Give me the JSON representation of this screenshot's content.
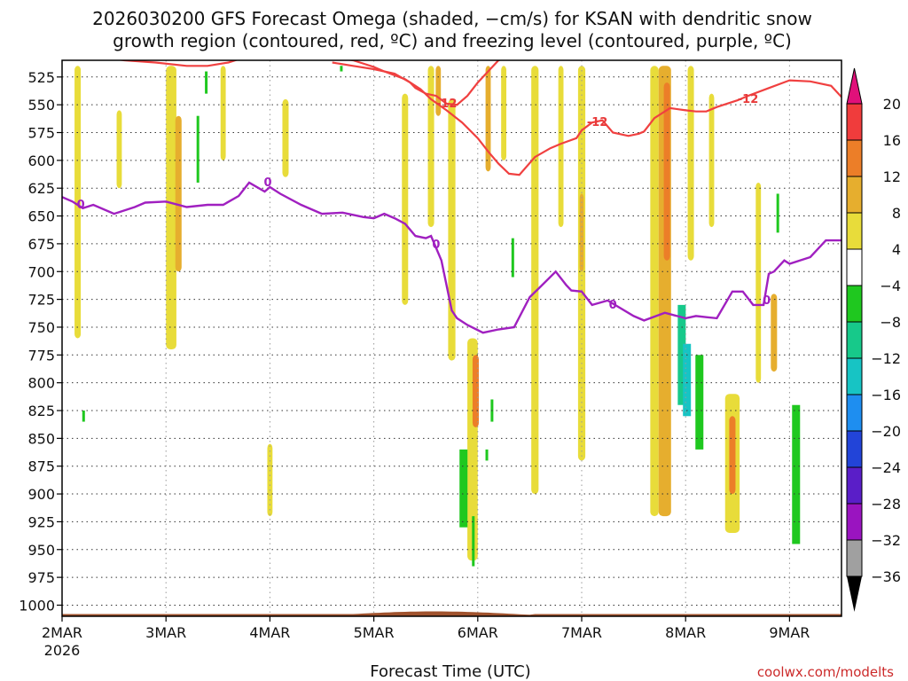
{
  "chart_data": {
    "type": "heatmap",
    "title_line1": "2026030200 GFS Forecast Omega (shaded, −cm/s) for KSAN with dendritic snow",
    "title_line2": "growth region (contoured, red, ºC) and freezing level (contoured, purple, ºC)",
    "xlabel": "Forecast Time (UTC)",
    "credit": "coolwx.com/modelts",
    "x_ticks": [
      "2MAR",
      "3MAR",
      "4MAR",
      "5MAR",
      "6MAR",
      "7MAR",
      "8MAR",
      "9MAR"
    ],
    "x_year": "2026",
    "x_range_days": [
      0,
      7.5
    ],
    "y_ticks": [
      525,
      550,
      575,
      600,
      625,
      650,
      675,
      700,
      725,
      750,
      775,
      800,
      825,
      850,
      875,
      900,
      925,
      950,
      975,
      1000
    ],
    "y_range_hpa": [
      510,
      1010
    ],
    "colorbar": {
      "labels": [
        "20",
        "16",
        "12",
        "8",
        "4",
        "−4",
        "−8",
        "−12",
        "−16",
        "−20",
        "−24",
        "−28",
        "−32",
        "−36"
      ],
      "bands": [
        {
          "from": 16,
          "to": 20,
          "color": "#f03c3c"
        },
        {
          "from": 12,
          "to": 16,
          "color": "#ec7e28"
        },
        {
          "from": 8,
          "to": 12,
          "color": "#e6ae2e"
        },
        {
          "from": 4,
          "to": 8,
          "color": "#e8dc3a"
        },
        {
          "from": -4,
          "to": 4,
          "color": "#ffffff"
        },
        {
          "from": -8,
          "to": -4,
          "color": "#1fc81f"
        },
        {
          "from": -12,
          "to": -8,
          "color": "#17c98a"
        },
        {
          "from": -16,
          "to": -12,
          "color": "#17c4c4"
        },
        {
          "from": -20,
          "to": -16,
          "color": "#1e8ef0"
        },
        {
          "from": -24,
          "to": -20,
          "color": "#2244d8"
        },
        {
          "from": -28,
          "to": -24,
          "color": "#5a1ec8"
        },
        {
          "from": -32,
          "to": -28,
          "color": "#9a14c0"
        },
        {
          "from": -36,
          "to": -32,
          "color": "#a0a0a0"
        }
      ],
      "top_arrow_color": "#e0107a",
      "bottom_arrow_color": "#000000"
    },
    "shading": [
      {
        "day": 0.15,
        "w": 0.06,
        "p0": 515,
        "p1": 760,
        "v": 5
      },
      {
        "day": 0.55,
        "w": 0.05,
        "p0": 555,
        "p1": 625,
        "v": 5
      },
      {
        "day": 1.05,
        "w": 0.1,
        "p0": 515,
        "p1": 770,
        "v": 5
      },
      {
        "day": 1.12,
        "w": 0.06,
        "p0": 560,
        "p1": 700,
        "v": 9
      },
      {
        "day": 1.55,
        "w": 0.05,
        "p0": 515,
        "p1": 600,
        "v": 5
      },
      {
        "day": 2.15,
        "w": 0.06,
        "p0": 545,
        "p1": 615,
        "v": 5
      },
      {
        "day": 2.0,
        "w": 0.05,
        "p0": 855,
        "p1": 920,
        "v": 5
      },
      {
        "day": 3.3,
        "w": 0.06,
        "p0": 540,
        "p1": 730,
        "v": 5
      },
      {
        "day": 3.55,
        "w": 0.06,
        "p0": 515,
        "p1": 660,
        "v": 5
      },
      {
        "day": 3.62,
        "w": 0.05,
        "p0": 515,
        "p1": 560,
        "v": 9
      },
      {
        "day": 3.75,
        "w": 0.07,
        "p0": 545,
        "p1": 780,
        "v": 5
      },
      {
        "day": 3.95,
        "w": 0.1,
        "p0": 760,
        "p1": 960,
        "v": 5
      },
      {
        "day": 3.98,
        "w": 0.06,
        "p0": 775,
        "p1": 840,
        "v": 13
      },
      {
        "day": 4.1,
        "w": 0.05,
        "p0": 515,
        "p1": 610,
        "v": 9
      },
      {
        "day": 4.25,
        "w": 0.05,
        "p0": 515,
        "p1": 600,
        "v": 5
      },
      {
        "day": 4.55,
        "w": 0.07,
        "p0": 515,
        "p1": 900,
        "v": 5
      },
      {
        "day": 4.8,
        "w": 0.05,
        "p0": 515,
        "p1": 660,
        "v": 5
      },
      {
        "day": 5.0,
        "w": 0.07,
        "p0": 515,
        "p1": 870,
        "v": 5
      },
      {
        "day": 5.0,
        "w": 0.04,
        "p0": 630,
        "p1": 700,
        "v": 9
      },
      {
        "day": 5.7,
        "w": 0.05,
        "p0": 560,
        "p1": 700,
        "v": 5
      },
      {
        "day": 5.7,
        "w": 0.08,
        "p0": 515,
        "p1": 920,
        "v": 5
      },
      {
        "day": 5.8,
        "w": 0.12,
        "p0": 515,
        "p1": 920,
        "v": 9
      },
      {
        "day": 5.82,
        "w": 0.06,
        "p0": 530,
        "p1": 690,
        "v": 13
      },
      {
        "day": 6.05,
        "w": 0.06,
        "p0": 515,
        "p1": 690,
        "v": 5
      },
      {
        "day": 6.25,
        "w": 0.05,
        "p0": 540,
        "p1": 660,
        "v": 5
      },
      {
        "day": 6.45,
        "w": 0.14,
        "p0": 810,
        "p1": 935,
        "v": 5
      },
      {
        "day": 6.45,
        "w": 0.06,
        "p0": 830,
        "p1": 900,
        "v": 13
      },
      {
        "day": 6.7,
        "w": 0.05,
        "p0": 620,
        "p1": 800,
        "v": 5
      },
      {
        "day": 6.85,
        "w": 0.06,
        "p0": 720,
        "p1": 790,
        "v": 9
      }
    ],
    "green_patches": [
      {
        "day": 0.22,
        "p0": 825,
        "p1": 835,
        "v": -6
      },
      {
        "day": 1.4,
        "p0": 520,
        "p1": 540,
        "v": -6
      },
      {
        "day": 1.32,
        "p0": 560,
        "p1": 620,
        "v": -6
      },
      {
        "day": 2.7,
        "p0": 515,
        "p1": 520,
        "v": -6
      },
      {
        "day": 3.85,
        "p0": 860,
        "p1": 930,
        "v": -6
      },
      {
        "day": 3.97,
        "p0": 920,
        "p1": 965,
        "v": -6
      },
      {
        "day": 4.15,
        "p0": 815,
        "p1": 835,
        "v": -6
      },
      {
        "day": 4.1,
        "p0": 860,
        "p1": 870,
        "v": -6
      },
      {
        "day": 4.35,
        "p0": 670,
        "p1": 705,
        "v": -6
      },
      {
        "day": 5.95,
        "p0": 730,
        "p1": 820,
        "v": -10
      },
      {
        "day": 6.0,
        "p0": 765,
        "p1": 830,
        "v": -14
      },
      {
        "day": 6.12,
        "p0": 775,
        "p1": 860,
        "v": -6
      },
      {
        "day": 6.9,
        "p0": 630,
        "p1": 665,
        "v": -6
      },
      {
        "day": 7.05,
        "p0": 820,
        "p1": 945,
        "v": -6
      }
    ],
    "dendritic_red": {
      "level_label": "-12",
      "x": [
        0.2,
        0.6,
        0.9,
        1.2,
        1.4,
        1.6,
        1.8,
        2.0,
        2.4,
        2.8,
        3.0,
        3.1,
        3.3,
        3.45,
        3.55,
        3.7,
        3.85,
        4.0,
        4.1,
        4.2,
        4.3,
        4.4,
        4.55,
        4.7,
        4.8,
        4.95,
        5.0,
        5.1,
        5.2,
        5.3,
        5.45,
        5.55,
        5.6,
        5.7,
        5.85,
        6.0,
        6.1,
        6.2,
        6.3,
        6.5,
        6.6,
        6.8,
        7.0,
        7.2,
        7.4,
        7.5
      ],
      "y": [
        505,
        510,
        512,
        515,
        515,
        512,
        506,
        505,
        505,
        510,
        516,
        520,
        527,
        536,
        545,
        555,
        566,
        580,
        592,
        603,
        612,
        613,
        597,
        589,
        585,
        580,
        573,
        566,
        564,
        575,
        578,
        576,
        574,
        562,
        553,
        555,
        556,
        556,
        552,
        546,
        542,
        535,
        528,
        529,
        533,
        543
      ],
      "upper_x": [
        2.6,
        2.8,
        3.0,
        3.2,
        3.35,
        3.4,
        3.5,
        3.6,
        3.7,
        3.8,
        3.9,
        4.0,
        4.1,
        4.2,
        4.4
      ],
      "upper_y": [
        512,
        515,
        518,
        522,
        530,
        535,
        540,
        542,
        549,
        550,
        542,
        530,
        520,
        510,
        505
      ],
      "labels": [
        {
          "text": "-12",
          "day": 3.7,
          "p": 549
        },
        {
          "text": "-12",
          "day": 5.15,
          "p": 566
        },
        {
          "text": "-12",
          "day": 6.6,
          "p": 545
        }
      ]
    },
    "freezing_purple": {
      "level_label": "0",
      "x": [
        0,
        0.1,
        0.2,
        0.3,
        0.5,
        0.7,
        0.8,
        1.0,
        1.2,
        1.4,
        1.55,
        1.7,
        1.8,
        1.95,
        2.0,
        2.1,
        2.3,
        2.5,
        2.7,
        2.9,
        3.0,
        3.1,
        3.2,
        3.3,
        3.4,
        3.5,
        3.55,
        3.65,
        3.75,
        3.8,
        3.9,
        4.05,
        4.2,
        4.35,
        4.5,
        4.6,
        4.75,
        4.85,
        4.9,
        5.0,
        5.1,
        5.25,
        5.5,
        5.6,
        5.8,
        6.0,
        6.1,
        6.2,
        6.3,
        6.45,
        6.55,
        6.65,
        6.75,
        6.8,
        6.85,
        6.95,
        7.0,
        7.2,
        7.35,
        7.5
      ],
      "y": [
        633,
        637,
        643,
        640,
        648,
        642,
        638,
        637,
        642,
        640,
        640,
        632,
        620,
        628,
        624,
        630,
        640,
        648,
        647,
        651,
        652,
        648,
        652,
        657,
        668,
        670,
        668,
        690,
        735,
        742,
        748,
        755,
        752,
        750,
        723,
        714,
        700,
        712,
        717,
        718,
        730,
        726,
        740,
        744,
        737,
        742,
        740,
        741,
        742,
        718,
        718,
        730,
        730,
        702,
        700,
        690,
        693,
        687,
        672,
        672
      ],
      "labels": [
        {
          "text": "0",
          "day": 0.18,
          "p": 640
        },
        {
          "text": "0",
          "day": 1.98,
          "p": 620
        },
        {
          "text": "0",
          "day": 3.6,
          "p": 676
        },
        {
          "text": "0",
          "day": 5.3,
          "p": 730
        },
        {
          "text": "0",
          "day": 6.78,
          "p": 726
        }
      ]
    },
    "terrain": {
      "p_top": 1008,
      "color": "#a0522d"
    }
  }
}
